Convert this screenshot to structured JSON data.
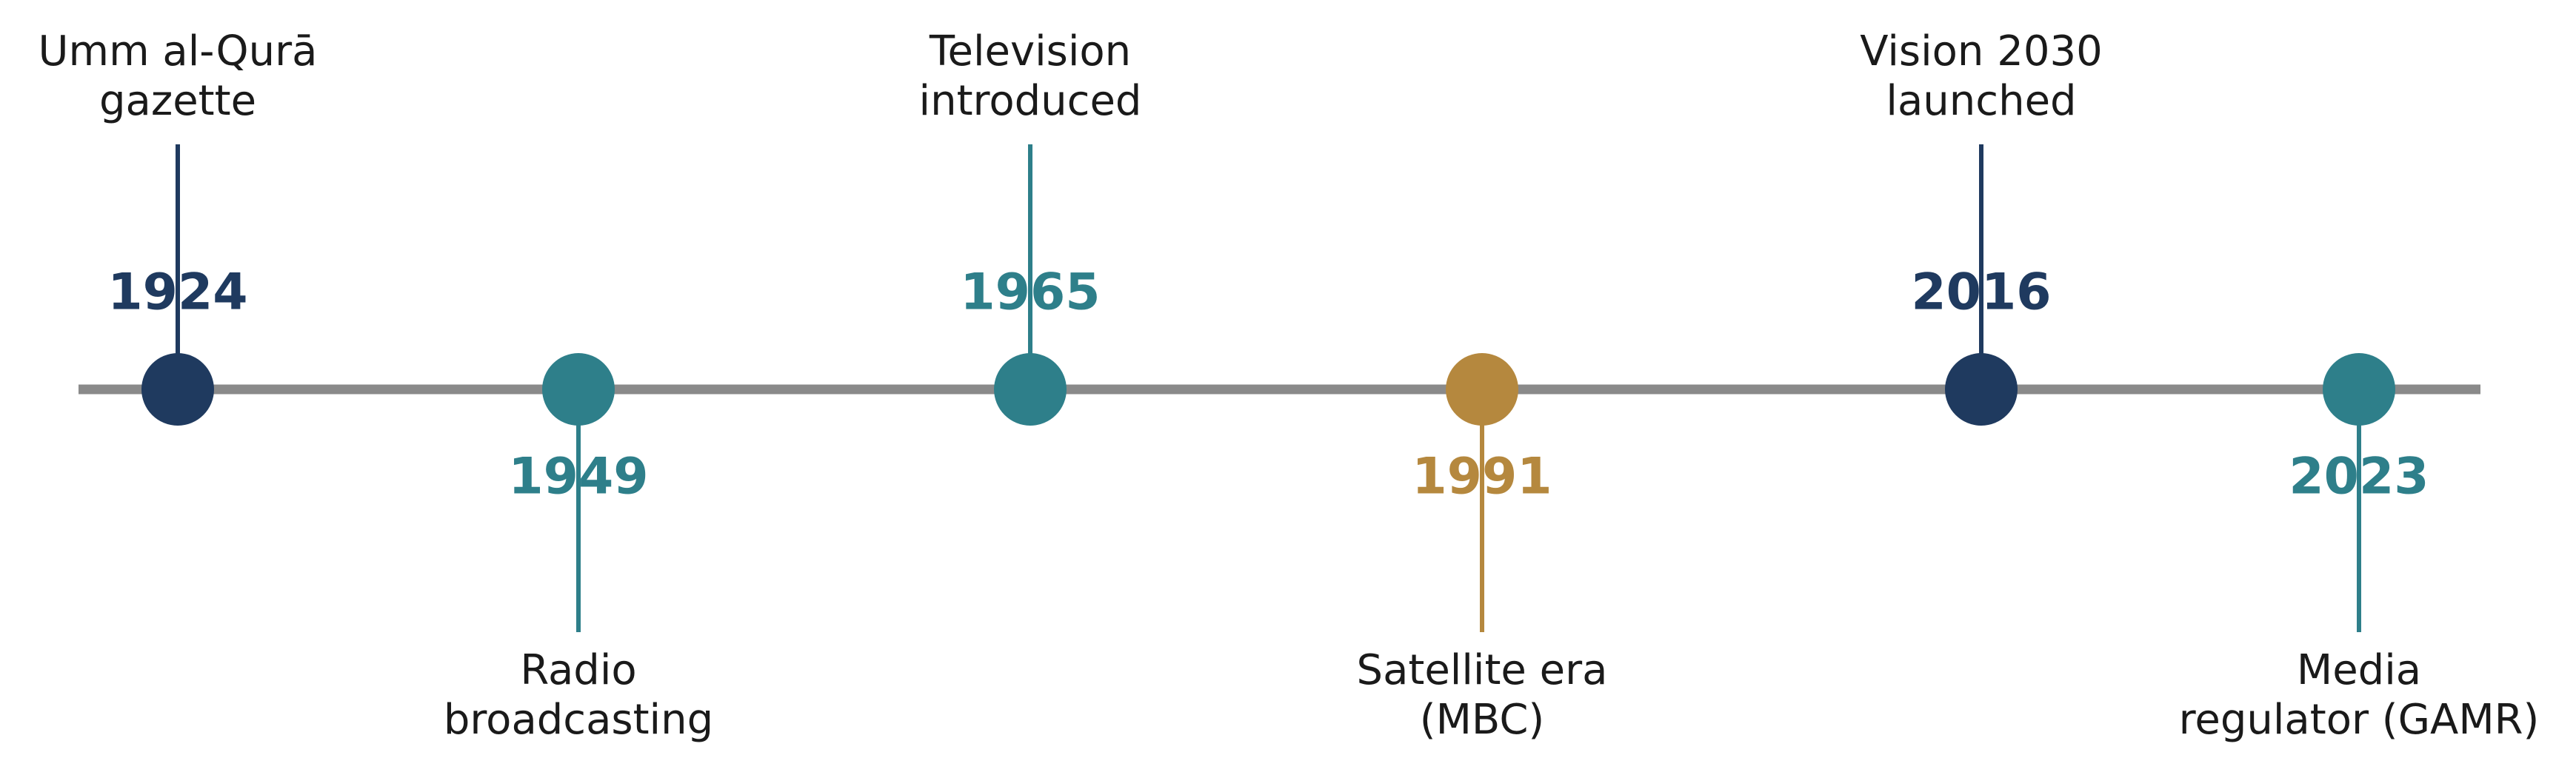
{
  "timeline": {
    "events": [
      {
        "year": "1924",
        "label": [
          "Umm al-Qurā",
          "gazette"
        ],
        "color": "#1f3a5f"
      },
      {
        "year": "1949",
        "label": [
          "Radio",
          "broadcasting"
        ],
        "color": "#2e7f8a"
      },
      {
        "year": "1965",
        "label": [
          "Television",
          "introduced"
        ],
        "color": "#2e7f8a"
      },
      {
        "year": "1991",
        "label": [
          "Satellite era",
          "(MBC)"
        ],
        "color": "#b5883e"
      },
      {
        "year": "2016",
        "label": [
          "Vision 2030",
          "launched"
        ],
        "color": "#1f3a5f"
      },
      {
        "year": "2023",
        "label": [
          "Media",
          "regulator (GAMR)"
        ],
        "color": "#2e7f8a"
      }
    ]
  }
}
